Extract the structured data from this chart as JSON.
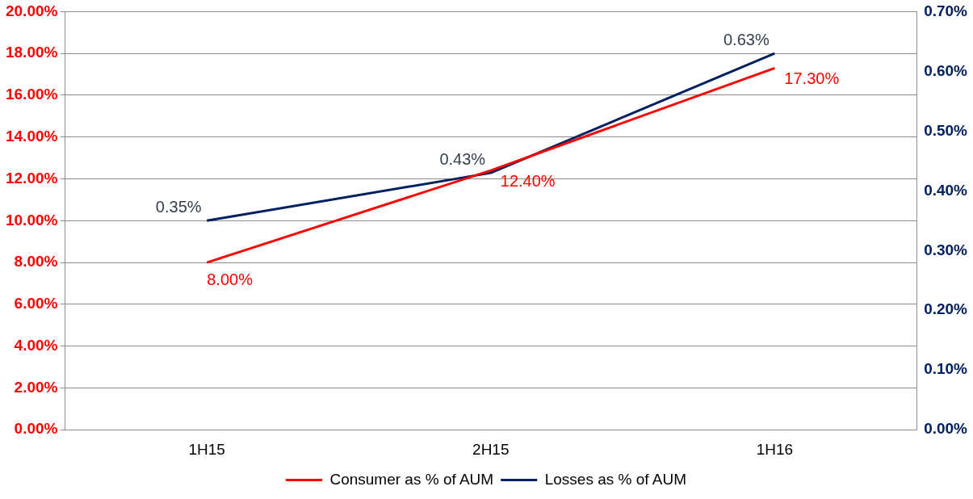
{
  "chart_data": {
    "type": "line",
    "categories": [
      "1H15",
      "2H15",
      "1H16"
    ],
    "series": [
      {
        "name": "Consumer as % of AUM",
        "color": "#ff0000",
        "values": [
          8,
          12.4,
          17.3
        ],
        "value_labels": [
          "8.00%",
          "12.40%",
          "17.30%"
        ]
      },
      {
        "name": "Losses as % of AUM",
        "color": "#002060",
        "values": [
          0.35,
          0.43,
          0.63
        ],
        "axis": "y2",
        "value_labels": [
          "0.35%",
          "0.43%",
          "0.63%"
        ]
      }
    ],
    "ylim": [
      0,
      20
    ],
    "yticks": [
      {
        "value": 0,
        "label": "0.00%"
      },
      {
        "value": 2,
        "label": "2.00%"
      },
      {
        "value": 4,
        "label": "4.00%"
      },
      {
        "value": 6,
        "label": "6.00%"
      },
      {
        "value": 8,
        "label": "8.00%"
      },
      {
        "value": 10,
        "label": "10.00%"
      },
      {
        "value": 12,
        "label": "12.00%"
      },
      {
        "value": 14,
        "label": "14.00%"
      },
      {
        "value": 16,
        "label": "16.00%"
      },
      {
        "value": 18,
        "label": "18.00%"
      },
      {
        "value": 20,
        "label": "20.00%"
      }
    ],
    "y2lim": [
      0,
      0.7
    ],
    "y2ticks": [
      {
        "value": 0,
        "label": "0.00%"
      },
      {
        "value": 0.1,
        "label": "0.10%"
      },
      {
        "value": 0.2,
        "label": "0.20%"
      },
      {
        "value": 0.3,
        "label": "0.30%"
      },
      {
        "value": 0.4,
        "label": "0.40%"
      },
      {
        "value": 0.5,
        "label": "0.50%"
      },
      {
        "value": 0.6,
        "label": "0.60%"
      },
      {
        "value": 0.7,
        "label": "0.70%"
      }
    ],
    "grid": "y",
    "legend": "bottom",
    "marker": "none",
    "line_style": "solid"
  }
}
